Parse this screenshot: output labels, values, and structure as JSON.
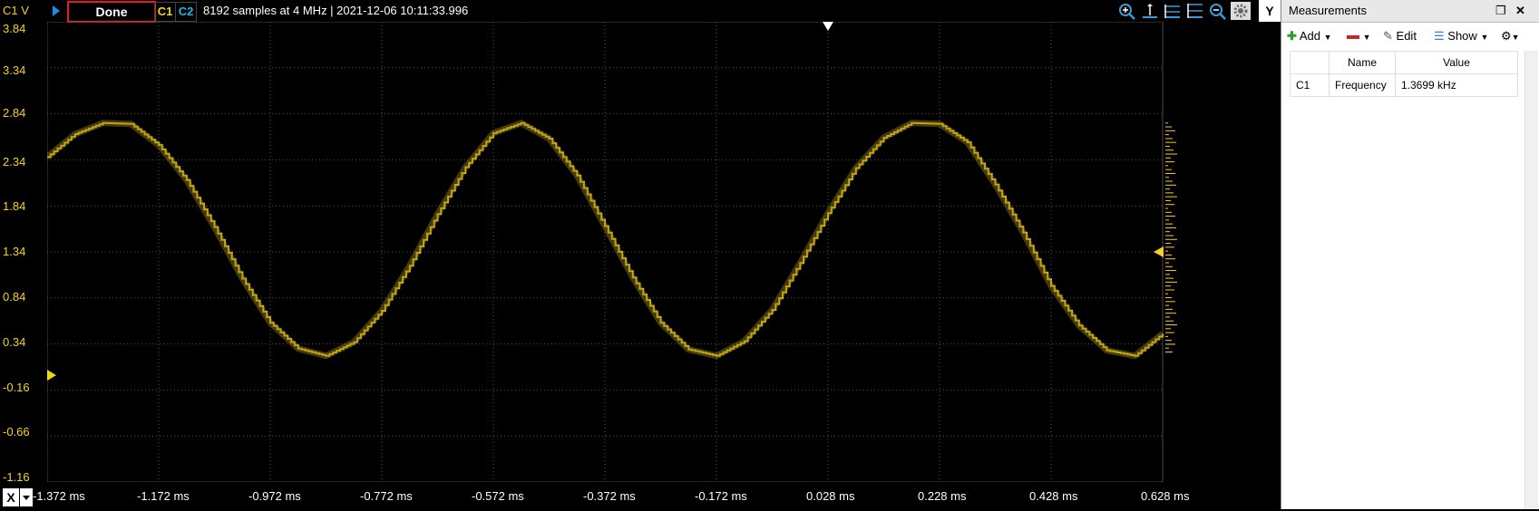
{
  "toolbar": {
    "channel_axis_label": "C1 V",
    "run_status": "Done",
    "channel1": "C1",
    "channel2": "C2",
    "capture_info": "8192 samples at 4 MHz | 2021-12-06 10:11:33.996",
    "y_button": "Y",
    "x_button": "X",
    "tools": [
      "zoom-in-icon",
      "cursor-a-icon",
      "cursor-b-icon",
      "cursor-c-icon",
      "zoom-out-icon",
      "settings-icon"
    ]
  },
  "scope_colors": {
    "channel1": "#f5d21c",
    "channel2": "#1cb8e8",
    "grid": "#555555",
    "background": "#000000"
  },
  "chart_data": {
    "type": "line",
    "series": [
      {
        "name": "C1",
        "x": [
          -1.372,
          -1.322,
          -1.272,
          -1.222,
          -1.172,
          -1.122,
          -1.072,
          -1.022,
          -0.972,
          -0.922,
          -0.872,
          -0.822,
          -0.772,
          -0.722,
          -0.672,
          -0.622,
          -0.572,
          -0.522,
          -0.472,
          -0.422,
          -0.372,
          -0.322,
          -0.272,
          -0.222,
          -0.172,
          -0.122,
          -0.072,
          -0.022,
          0.028,
          0.078,
          0.128,
          0.178,
          0.228,
          0.278,
          0.328,
          0.378,
          0.428,
          0.478,
          0.528,
          0.578,
          0.628
        ],
        "y": [
          2.37,
          2.62,
          2.74,
          2.73,
          2.5,
          2.12,
          1.61,
          1.05,
          0.57,
          0.29,
          0.21,
          0.36,
          0.7,
          1.19,
          1.75,
          2.26,
          2.63,
          2.74,
          2.57,
          2.17,
          1.62,
          1.06,
          0.57,
          0.28,
          0.21,
          0.37,
          0.71,
          1.22,
          1.76,
          2.25,
          2.58,
          2.74,
          2.73,
          2.53,
          2.07,
          1.55,
          0.97,
          0.54,
          0.27,
          0.21,
          0.45
        ]
      }
    ],
    "xlabel": "",
    "ylabel": "C1 V",
    "x_ticks": [
      "-1.372 ms",
      "-1.172 ms",
      "-0.972 ms",
      "-0.772 ms",
      "-0.572 ms",
      "-0.372 ms",
      "-0.172 ms",
      "0.028 ms",
      "0.228 ms",
      "0.428 ms",
      "0.628 ms"
    ],
    "y_ticks": [
      "3.84",
      "3.34",
      "2.84",
      "2.34",
      "1.84",
      "1.34",
      "0.84",
      "0.34",
      "-0.16",
      "-0.66",
      "-1.16"
    ],
    "xlim": [
      -1.372,
      0.628
    ],
    "ylim": [
      -1.16,
      3.84
    ],
    "grid": true,
    "trigger_level": 1.34,
    "trigger_time": 0.028,
    "ground_level": 0.0
  },
  "measurements": {
    "title": "Measurements",
    "add_label": "Add",
    "edit_label": "Edit",
    "show_label": "Show",
    "columns": [
      "",
      "Name",
      "Value"
    ],
    "rows": [
      {
        "channel": "C1",
        "name": "Frequency",
        "value": "1.3699 kHz"
      }
    ]
  }
}
